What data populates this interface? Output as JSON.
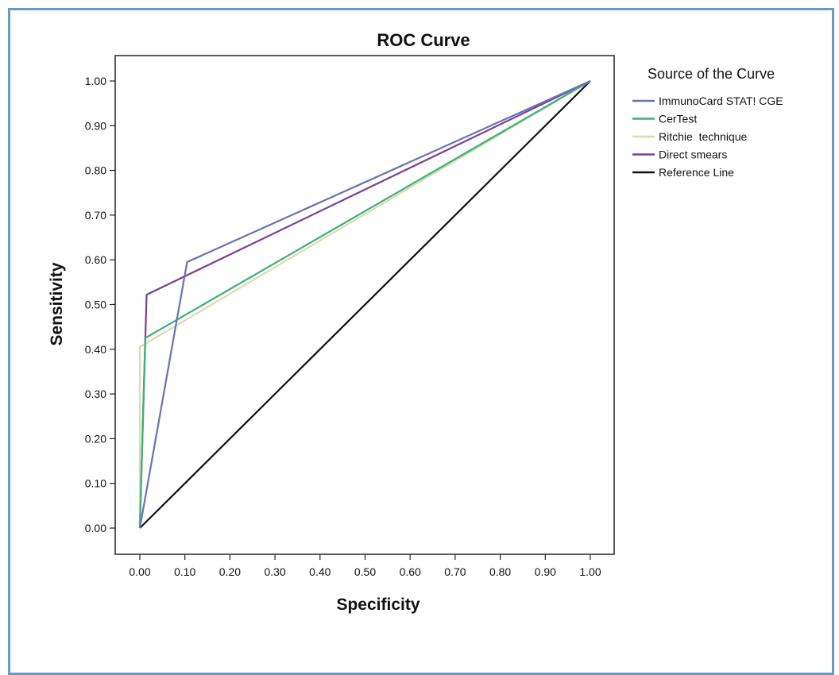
{
  "chart_data": {
    "type": "line",
    "title": "ROC Curve",
    "xlabel": "Specificity",
    "ylabel": "Sensitivity",
    "xlim": [
      0,
      1
    ],
    "ylim": [
      0,
      1
    ],
    "x_ticks": [
      "0.00",
      "0.10",
      "0.20",
      "0.30",
      "0.40",
      "0.50",
      "0.60",
      "0.70",
      "0.80",
      "0.90",
      "1.00"
    ],
    "y_ticks": [
      "0.00",
      "0.10",
      "0.20",
      "0.30",
      "0.40",
      "0.50",
      "0.60",
      "0.70",
      "0.80",
      "0.90",
      "1.00"
    ],
    "grid": false,
    "legend_title": "Source of the Curve",
    "legend_position": "right",
    "series": [
      {
        "name": "ImmunoCard STAT! CGE",
        "color": "#6a70b8",
        "x": [
          0,
          0.105,
          1
        ],
        "y": [
          0,
          0.595,
          1
        ]
      },
      {
        "name": "CerTest",
        "color": "#3fae7a",
        "x": [
          0,
          0.012,
          1
        ],
        "y": [
          0,
          0.425,
          1
        ]
      },
      {
        "name": "Ritchie  technique",
        "color": "#d8dcae",
        "x": [
          0,
          0.0,
          1
        ],
        "y": [
          0,
          0.405,
          1
        ]
      },
      {
        "name": "Direct smears",
        "color": "#7b3f98",
        "x": [
          0,
          0.015,
          1
        ],
        "y": [
          0,
          0.522,
          1
        ]
      },
      {
        "name": "Reference Line",
        "color": "#111111",
        "x": [
          0,
          1
        ],
        "y": [
          0,
          1
        ]
      }
    ]
  }
}
